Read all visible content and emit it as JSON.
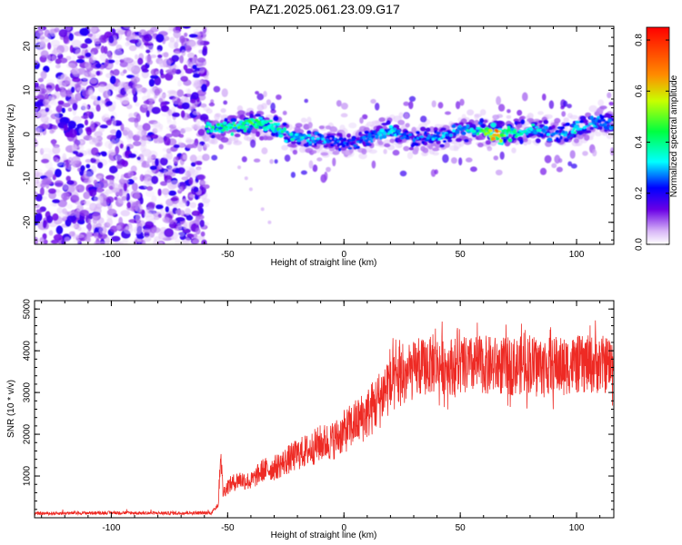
{
  "title": "PAZ1.2025.061.23.09.G17",
  "chart_data": [
    {
      "type": "heatmap",
      "xlabel": "Height of straight line (km)",
      "ylabel": "Frequency (Hz)",
      "xlim": [
        -133,
        116
      ],
      "ylim": [
        -25,
        24.5
      ],
      "xticks": [
        -100,
        -50,
        0,
        50,
        100
      ],
      "yticks": [
        -20,
        -10,
        0,
        10,
        20
      ],
      "colorbar": {
        "label": "Normalized spectral amplitude",
        "range": [
          0.0,
          0.85
        ],
        "ticks": [
          0.0,
          0.2,
          0.4,
          0.6,
          0.8
        ]
      },
      "noise_region": {
        "x": [
          -133,
          -59
        ],
        "y": [
          -25,
          24.5
        ],
        "amplitude": [
          0.02,
          0.2
        ]
      },
      "ridge": {
        "x_start": -59,
        "x_end": 116,
        "center_freq": [
          [
            -59,
            1.5
          ],
          [
            -50,
            1.5
          ],
          [
            -40,
            2.5
          ],
          [
            -30,
            2
          ],
          [
            -25,
            0
          ],
          [
            -20,
            -1
          ],
          [
            -10,
            -1
          ],
          [
            0,
            -2
          ],
          [
            5,
            -2
          ],
          [
            10,
            -1
          ],
          [
            20,
            1
          ],
          [
            30,
            -1
          ],
          [
            40,
            -1
          ],
          [
            50,
            1
          ],
          [
            60,
            1
          ],
          [
            65,
            0
          ],
          [
            70,
            0
          ],
          [
            80,
            1
          ],
          [
            90,
            0
          ],
          [
            100,
            1
          ],
          [
            110,
            3
          ],
          [
            116,
            2
          ]
        ],
        "peak_amplitude": [
          [
            -59,
            0.4
          ],
          [
            -45,
            0.45
          ],
          [
            -35,
            0.45
          ],
          [
            -20,
            0.35
          ],
          [
            -10,
            0.3
          ],
          [
            0,
            0.25
          ],
          [
            10,
            0.3
          ],
          [
            20,
            0.35
          ],
          [
            30,
            0.25
          ],
          [
            40,
            0.3
          ],
          [
            50,
            0.3
          ],
          [
            60,
            0.45
          ],
          [
            66,
            0.8
          ],
          [
            70,
            0.45
          ],
          [
            80,
            0.35
          ],
          [
            90,
            0.3
          ],
          [
            100,
            0.35
          ],
          [
            110,
            0.3
          ],
          [
            116,
            0.3
          ]
        ]
      },
      "faint_tail": [
        [
          -45,
          -7.5
        ],
        [
          -42,
          -10
        ],
        [
          -40,
          -12.5
        ],
        [
          -35,
          -17
        ],
        [
          -32,
          -20
        ]
      ]
    },
    {
      "type": "line",
      "xlabel": "Height of straight line (km)",
      "ylabel": "SNR (10 * v/v)",
      "xlim": [
        -133,
        116
      ],
      "ylim": [
        0,
        5200
      ],
      "xticks": [
        -100,
        -50,
        0,
        50,
        100
      ],
      "yticks": [
        1000,
        2000,
        3000,
        4000,
        5000
      ],
      "color": "#ee2a24",
      "series": [
        {
          "values": [
            [
              -133,
              100
            ],
            [
              -120,
              110
            ],
            [
              -100,
              120
            ],
            [
              -80,
              110
            ],
            [
              -60,
              115
            ],
            [
              -57,
              120
            ],
            [
              -54,
              300
            ],
            [
              -53,
              1500
            ],
            [
              -52,
              550
            ],
            [
              -50,
              700
            ],
            [
              -45,
              850
            ],
            [
              -40,
              800
            ],
            [
              -35,
              1050
            ],
            [
              -30,
              1100
            ],
            [
              -25,
              1250
            ],
            [
              -20,
              1400
            ],
            [
              -15,
              1500
            ],
            [
              -10,
              1650
            ],
            [
              -5,
              1700
            ],
            [
              0,
              1900
            ],
            [
              5,
              2100
            ],
            [
              10,
              2300
            ],
            [
              15,
              2600
            ],
            [
              20,
              3050
            ],
            [
              25,
              3300
            ],
            [
              30,
              3450
            ],
            [
              35,
              3550
            ],
            [
              40,
              3600
            ],
            [
              50,
              3550
            ],
            [
              60,
              3600
            ],
            [
              70,
              3550
            ],
            [
              80,
              3600
            ],
            [
              90,
              3550
            ],
            [
              100,
              3600
            ],
            [
              110,
              3600
            ],
            [
              116,
              3600
            ]
          ]
        }
      ]
    }
  ]
}
